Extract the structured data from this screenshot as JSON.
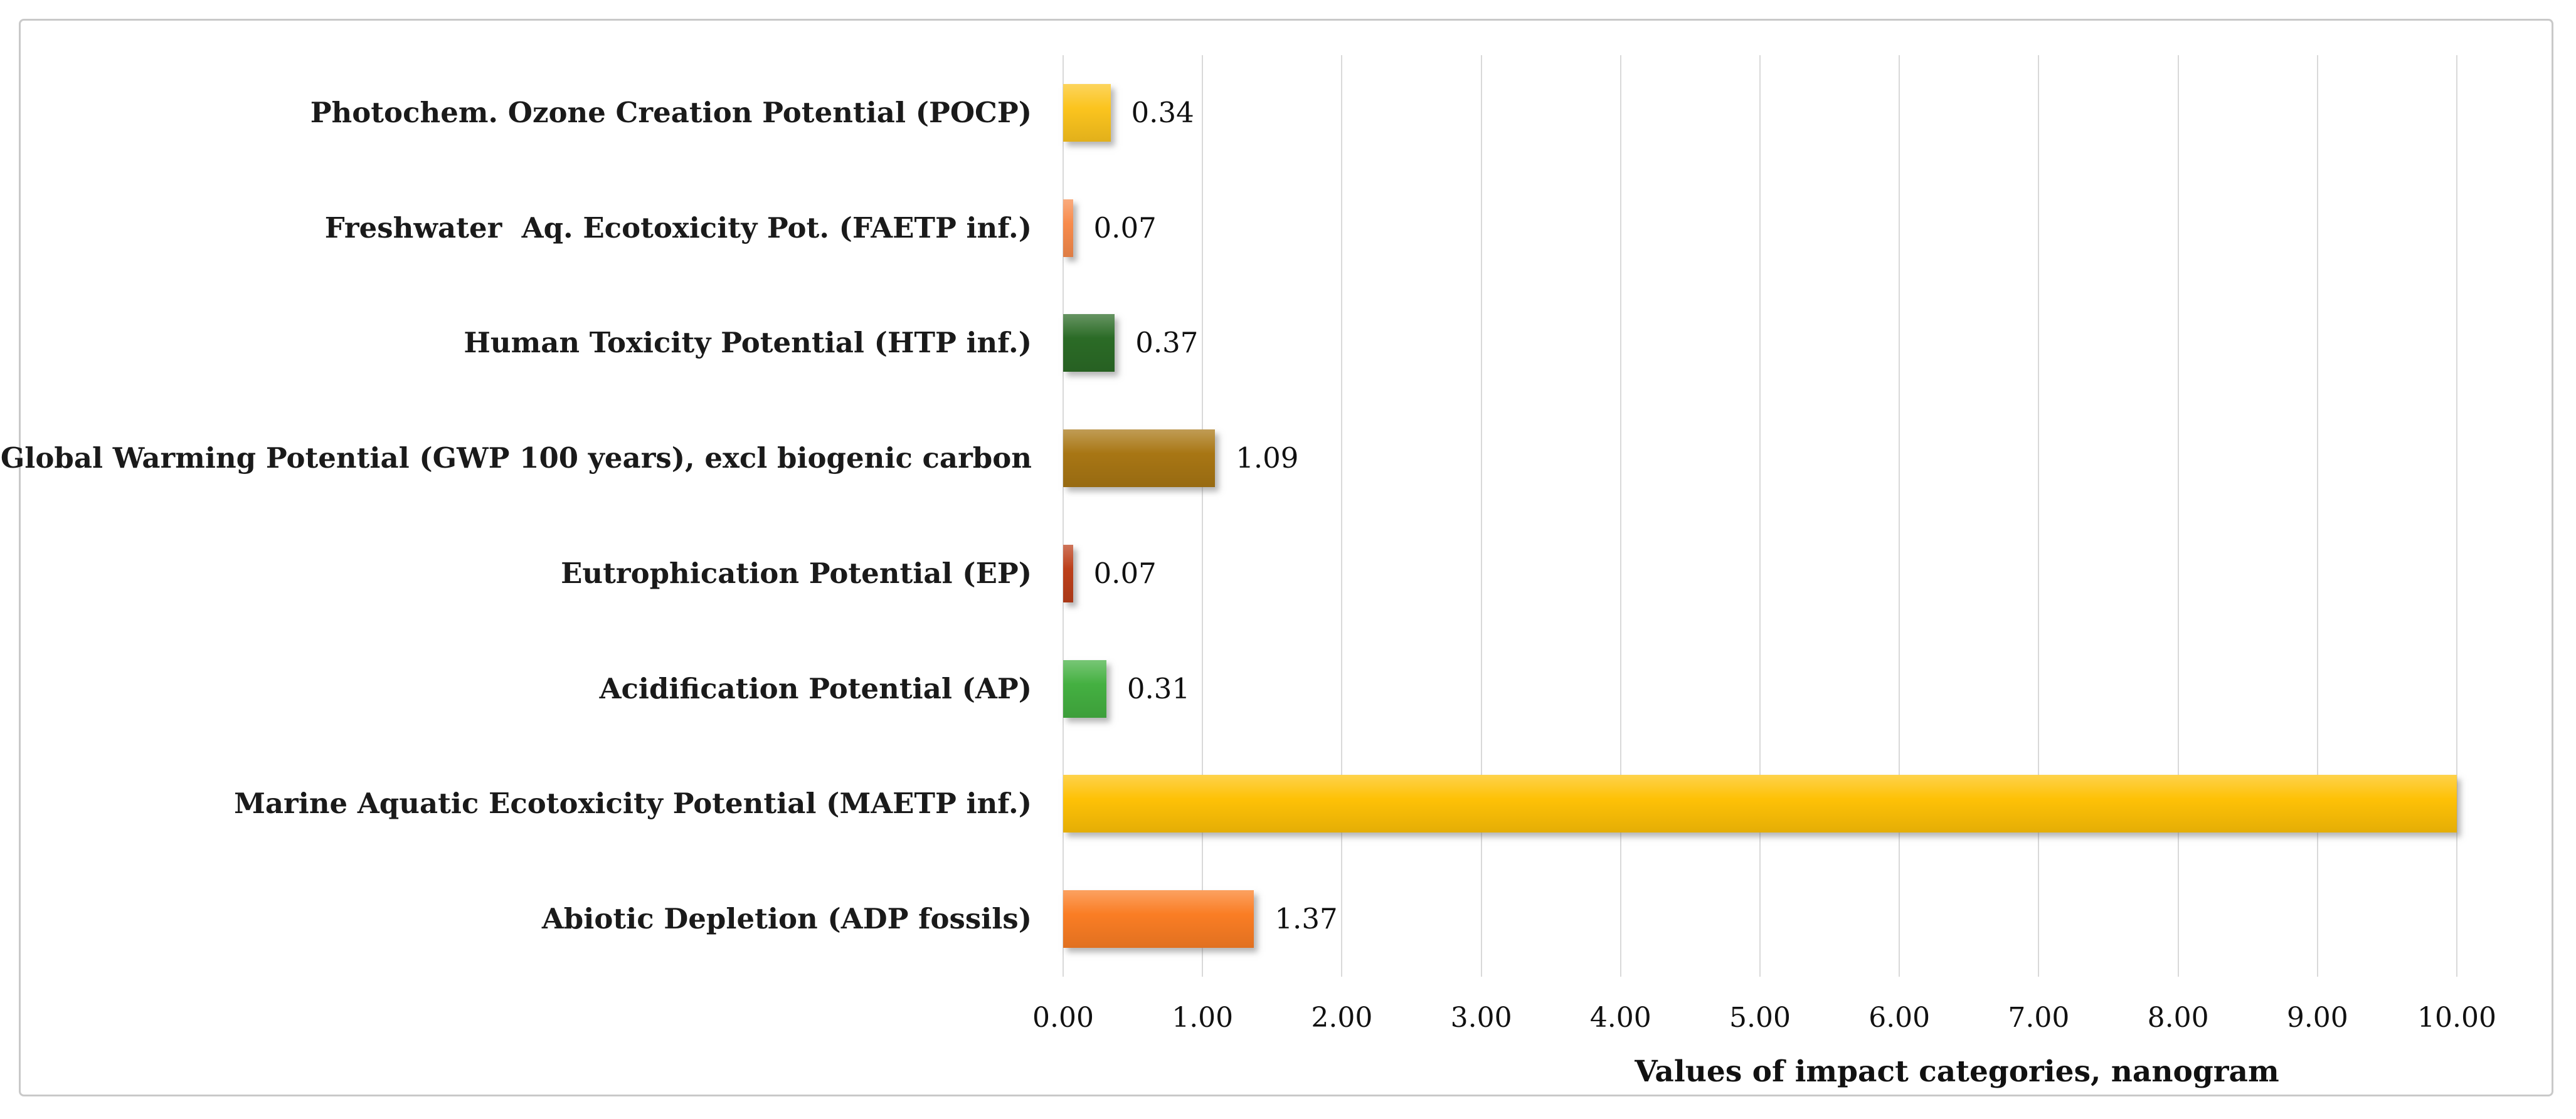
{
  "figure": {
    "background_color": "#FFFFFF",
    "border_color": "#C9C9C9",
    "gridline_color": "#D9D9D9"
  },
  "chart_data": {
    "type": "bar",
    "orientation": "horizontal",
    "title": "",
    "xlabel": "Values of impact categories, nanogram",
    "ylabel": "",
    "xlim": [
      0,
      10
    ],
    "xtick_labels": [
      "0.00",
      "1.00",
      "2.00",
      "3.00",
      "4.00",
      "5.00",
      "6.00",
      "7.00",
      "8.00",
      "9.00",
      "10.00"
    ],
    "grid": "vertical gridlines on",
    "legend": "none",
    "categories": [
      "Photochem. Ozone Creation Potential (POCP)",
      "Freshwater  Aq. Ecotoxicity Pot. (FAETP inf.)",
      "Human Toxicity Potential (HTP inf.)",
      "Global Warming Potential (GWP 100 years), excl biogenic carbon",
      "Eutrophication Potential (EP)",
      "Acidification Potential (AP)",
      "Marine Aquatic Ecotoxicity Potential (MAETP inf.)",
      "Abiotic Depletion (ADP fossils)"
    ],
    "values": [
      0.34,
      0.07,
      0.37,
      1.09,
      0.07,
      0.31,
      10.0,
      1.37
    ],
    "data_labels": [
      "0.34",
      "0.07",
      "0.37",
      "1.09",
      "0.07",
      "0.31",
      "",
      "1.37"
    ],
    "bar_colors": [
      "#FBC41E",
      "#F78B4C",
      "#2B6B26",
      "#A87614",
      "#BC3F1A",
      "#44B041",
      "#FEC106",
      "#FA7D24"
    ]
  }
}
